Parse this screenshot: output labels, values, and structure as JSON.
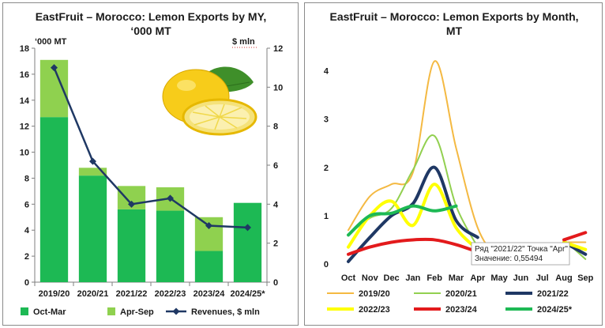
{
  "chart_data": [
    {
      "type": "bar",
      "title": "EastFruit – Morocco: Lemon Exports by MY,",
      "title_line2": "‘000 MT",
      "ylabel_left": "‘000 MT",
      "ylabel_right": "$ mln",
      "categories": [
        "2019/20",
        "2020/21",
        "2021/22",
        "2022/23",
        "2023/24",
        "2024/25*"
      ],
      "ylim": [
        0,
        18
      ],
      "ylim_right": [
        0,
        12
      ],
      "yticks": [
        0,
        2,
        4,
        6,
        8,
        10,
        12,
        14,
        16,
        18
      ],
      "yticks_right": [
        0,
        2,
        4,
        6,
        8,
        10,
        12
      ],
      "stacked": true,
      "series": [
        {
          "name": "Oct-Mar",
          "type": "bar",
          "color": "#1db954",
          "values": [
            12.7,
            8.2,
            5.6,
            5.5,
            2.4,
            6.1
          ]
        },
        {
          "name": "Apr-Sep",
          "type": "bar",
          "color": "#8fd14f",
          "values": [
            4.4,
            0.6,
            1.8,
            1.8,
            2.6,
            0
          ]
        },
        {
          "name": "Revenues, $ mln",
          "type": "line",
          "axis": "right",
          "color": "#1f3864",
          "values": [
            11.0,
            6.2,
            4.0,
            4.3,
            2.9,
            2.8
          ]
        }
      ],
      "legend_position": "bottom",
      "grid": false
    },
    {
      "type": "line",
      "title": "EastFruit – Morocco: Lemon Exports by Month,",
      "title_line2": "MT",
      "categories": [
        "Oct",
        "Nov",
        "Dec",
        "Jan",
        "Feb",
        "Mar",
        "Apr",
        "May",
        "Jun",
        "Jul",
        "Aug",
        "Sep"
      ],
      "ylim": [
        0,
        4.5
      ],
      "yticks": [
        0,
        1,
        2,
        3,
        4
      ],
      "series": [
        {
          "name": "2019/20",
          "color": "#f4b942",
          "width": 2,
          "values": [
            0.7,
            1.4,
            1.65,
            1.9,
            4.2,
            2.4,
            0.75,
            0.05,
            null,
            null,
            0.45,
            0.45
          ]
        },
        {
          "name": "2020/21",
          "color": "#92d050",
          "width": 2,
          "values": [
            0.6,
            0.95,
            1.15,
            1.95,
            2.65,
            1.2,
            0.35,
            null,
            null,
            null,
            0.5,
            0.1
          ]
        },
        {
          "name": "2021/22",
          "color": "#1f3864",
          "width": 4,
          "values": [
            0.05,
            0.55,
            1.0,
            1.25,
            2.0,
            0.9,
            0.55,
            null,
            null,
            null,
            0.45,
            0.2
          ]
        },
        {
          "name": "2022/23",
          "color": "#ffff00",
          "width": 4,
          "values": [
            0.35,
            1.0,
            1.3,
            0.8,
            1.65,
            0.75,
            0.3,
            null,
            null,
            null,
            0.45,
            0.3
          ]
        },
        {
          "name": "2023/24",
          "color": "#e31a1c",
          "width": 4,
          "values": [
            0.2,
            0.35,
            0.45,
            0.5,
            0.5,
            0.4,
            0.25,
            null,
            null,
            null,
            0.5,
            0.65
          ]
        },
        {
          "name": "2024/25*",
          "color": "#1db954",
          "width": 4,
          "values": [
            0.6,
            1.0,
            1.05,
            1.2,
            1.1,
            1.2,
            null,
            null,
            null,
            null,
            null,
            null
          ]
        }
      ],
      "tooltip": {
        "line1": "Ряд \"2021/22\" Точка \"Apr\"",
        "line2": "Значение:  0,55494"
      },
      "legend_position": "bottom",
      "grid": false
    }
  ]
}
